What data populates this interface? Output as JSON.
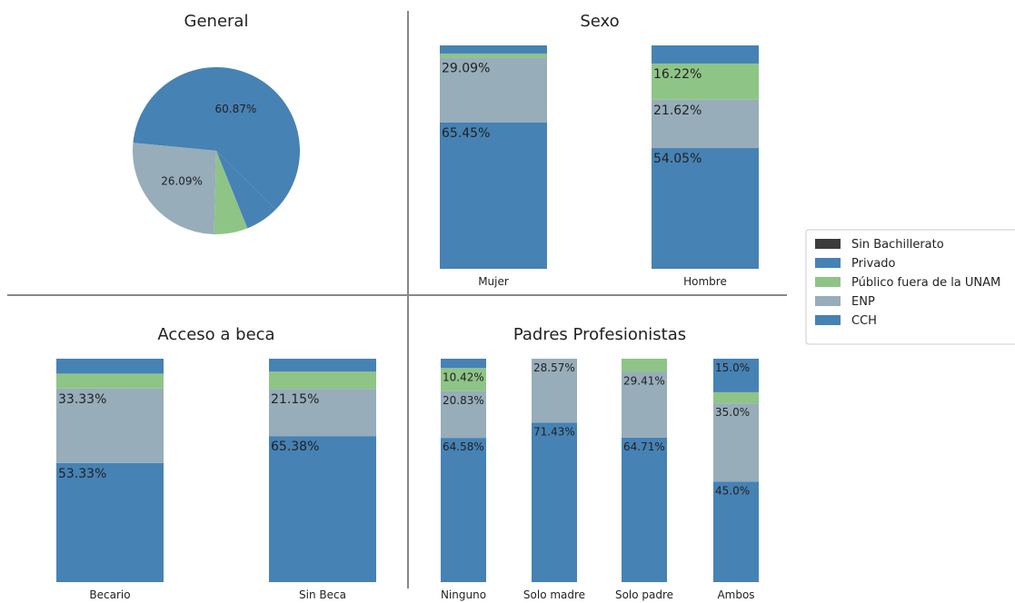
{
  "colors": {
    "CCH": "#4682b4",
    "ENP": "#97adb9",
    "Publico": "#8fc487",
    "Privado": "#4682b4",
    "SinBach": "#3c3c3c"
  },
  "legend": {
    "items": [
      {
        "label": "Sin Bachillerato",
        "color": "#3c3c3c"
      },
      {
        "label": "Privado",
        "color": "#4682b4"
      },
      {
        "label": "Público fuera de la UNAM",
        "color": "#8fc487"
      },
      {
        "label": "ENP",
        "color": "#97adb9"
      },
      {
        "label": "CCH",
        "color": "#4682b4"
      }
    ]
  },
  "chart_data": [
    {
      "type": "pie",
      "title": "General",
      "slices": [
        {
          "label": "CCH",
          "value": 60.87,
          "text": "60.87%"
        },
        {
          "label": "ENP",
          "value": 26.09,
          "text": "26.09%"
        },
        {
          "label": "Público fuera de la UNAM",
          "value": 6.52,
          "text": ""
        },
        {
          "label": "Privado",
          "value": 6.52,
          "text": ""
        },
        {
          "label": "Sin Bachillerato",
          "value": 0,
          "text": ""
        }
      ]
    },
    {
      "type": "bar",
      "title": "Sexo",
      "categories": [
        "Mujer",
        "Hombre"
      ],
      "series": [
        {
          "name": "CCH",
          "values": [
            65.45,
            54.05
          ],
          "labels": [
            "65.45%",
            "54.05%"
          ]
        },
        {
          "name": "ENP",
          "values": [
            29.09,
            21.62
          ],
          "labels": [
            "29.09%",
            "21.62%"
          ]
        },
        {
          "name": "Público fuera de la UNAM",
          "values": [
            1.82,
            16.22
          ],
          "labels": [
            "",
            "16.22%"
          ]
        },
        {
          "name": "Privado",
          "values": [
            3.64,
            8.11
          ],
          "labels": [
            "",
            ""
          ]
        },
        {
          "name": "Sin Bachillerato",
          "values": [
            0,
            0
          ],
          "labels": [
            "",
            ""
          ]
        }
      ]
    },
    {
      "type": "bar",
      "title": "Acceso a beca",
      "categories": [
        "Becario",
        "Sin Beca"
      ],
      "series": [
        {
          "name": "CCH",
          "values": [
            53.33,
            65.38
          ],
          "labels": [
            "53.33%",
            "65.38%"
          ]
        },
        {
          "name": "ENP",
          "values": [
            33.33,
            21.15
          ],
          "labels": [
            "33.33%",
            "21.15%"
          ]
        },
        {
          "name": "Público fuera de la UNAM",
          "values": [
            6.67,
            7.69
          ],
          "labels": [
            "",
            ""
          ]
        },
        {
          "name": "Privado",
          "values": [
            6.67,
            5.77
          ],
          "labels": [
            "",
            ""
          ]
        },
        {
          "name": "Sin Bachillerato",
          "values": [
            0,
            0
          ],
          "labels": [
            "",
            ""
          ]
        }
      ]
    },
    {
      "type": "bar",
      "title": "Padres Profesionistas",
      "categories": [
        "Ninguno",
        "Solo madre",
        "Solo padre",
        "Ambos"
      ],
      "series": [
        {
          "name": "CCH",
          "values": [
            64.58,
            71.43,
            64.71,
            45.0
          ],
          "labels": [
            "64.58%",
            "71.43%",
            "64.71%",
            "45.0%"
          ]
        },
        {
          "name": "ENP",
          "values": [
            20.83,
            28.57,
            29.41,
            35.0
          ],
          "labels": [
            "20.83%",
            "28.57%",
            "29.41%",
            "35.0%"
          ]
        },
        {
          "name": "Público fuera de la UNAM",
          "values": [
            10.42,
            0,
            5.88,
            5.0
          ],
          "labels": [
            "10.42%",
            "",
            "",
            ""
          ]
        },
        {
          "name": "Privado",
          "values": [
            4.17,
            0,
            0,
            15.0
          ],
          "labels": [
            "",
            "",
            "",
            "15.0%"
          ]
        },
        {
          "name": "Sin Bachillerato",
          "values": [
            0,
            0,
            0,
            0
          ],
          "labels": [
            "",
            "",
            "",
            ""
          ]
        }
      ]
    }
  ]
}
